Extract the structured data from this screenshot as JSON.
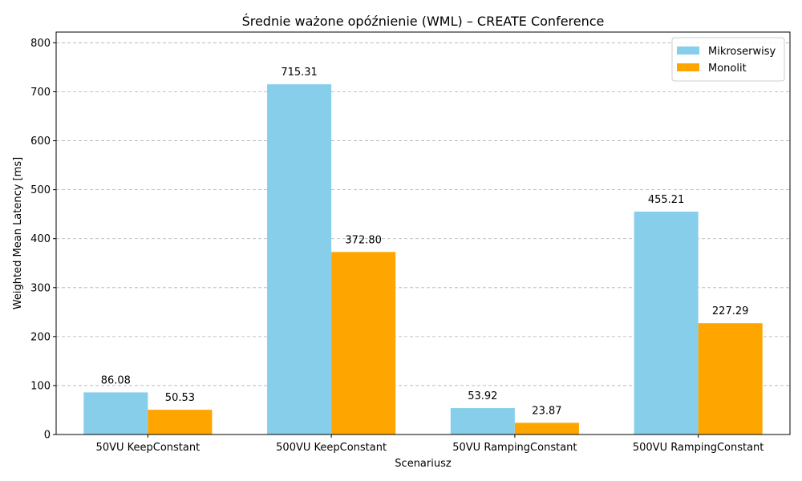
{
  "chart_data": {
    "type": "bar",
    "title": "Średnie ważone opóźnienie (WML) – CREATE Conference",
    "xlabel": "Scenariusz",
    "ylabel": "Weighted Mean Latency [ms]",
    "categories": [
      "50VU KeepConstant",
      "500VU KeepConstant",
      "50VU RampingConstant",
      "500VU RampingConstant"
    ],
    "series": [
      {
        "name": "Mikroserwisy",
        "color": "#87CEEB",
        "values": [
          86.08,
          715.31,
          53.92,
          455.21
        ],
        "labels": [
          "86.08",
          "715.31",
          "53.92",
          "455.21"
        ]
      },
      {
        "name": "Monolit",
        "color": "#FFA500",
        "values": [
          50.53,
          372.8,
          23.87,
          227.29
        ],
        "labels": [
          "50.53",
          "372.80",
          "23.87",
          "227.29"
        ]
      }
    ],
    "ylim": [
      0,
      822
    ],
    "yticks": [
      0,
      100,
      200,
      300,
      400,
      500,
      600,
      700,
      800
    ],
    "grid": "y-dashed",
    "legend": "top-right"
  }
}
